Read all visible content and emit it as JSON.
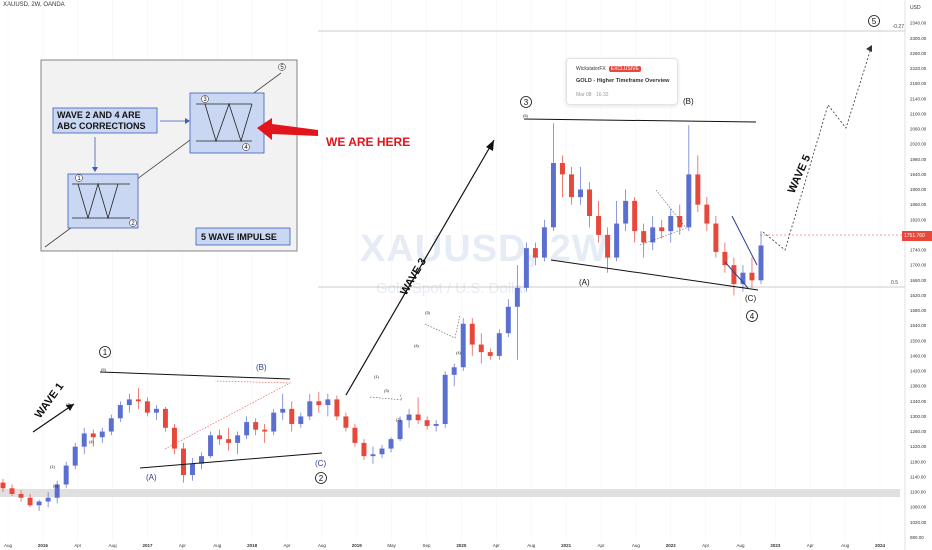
{
  "header": {
    "symbol": "XAUUSD, 2W, OANDA"
  },
  "watermark": {
    "ticker": "XAUUSD, 2W",
    "name": "Gold Spot / U.S. Dollar"
  },
  "tooltip": {
    "author": "WickstatorFX",
    "badge": "EXCLUSIVE",
    "title": "GOLD - Higher Timeframe Overview",
    "date": "Mar 08 · 16:32"
  },
  "colors": {
    "up": "#5b6fd1",
    "down": "#e8473c",
    "inset_bg": "#f2f2f2",
    "box_fill": "#c9d7f3",
    "box_stroke": "#3e5cb8",
    "arrow_red": "#e3141b",
    "wave_blue": "#2a3d99"
  },
  "inset": {
    "note": "WAVE 2 AND 4 ARE\nABC CORRECTIONS",
    "label": "5 WAVE IMPULSE",
    "callout": "WE ARE HERE",
    "markers": [
      "1",
      "2",
      "3",
      "4",
      "5"
    ]
  },
  "wave_labels": {
    "wave1": "WAVE 1",
    "wave3": "WAVE 3",
    "wave5": "WAVE 5",
    "c1": "1",
    "c2": "2",
    "c3": "3",
    "c4": "4",
    "c5": "5",
    "A1": "(A)",
    "B1": "(B)",
    "C1": "(C)",
    "A2": "(A)",
    "B2": "(B)",
    "C2": "(C)",
    "s1": "(1)",
    "s2": "(2)",
    "s3": "(3)",
    "s4": "(4)",
    "s5": "(5)",
    "t1": "(1)",
    "t2": "(2)",
    "t3": "(3)",
    "t4": "(4)",
    "t5": "(5)",
    "u3": "(3)",
    "u4": "(4)"
  },
  "fib_label": "0.5",
  "fib_top_label": "-0.27",
  "current_price": {
    "value": "1751.760",
    "sub": "114:22:01"
  },
  "chart_data": {
    "type": "candlestick",
    "y_axis_label": "USD",
    "ylim": [
      960,
      2380
    ],
    "y_ticks": [
      980,
      1020,
      1060,
      1100,
      1140,
      1180,
      1220,
      1260,
      1300,
      1340,
      1380,
      1420,
      1460,
      1500,
      1540,
      1580,
      1620,
      1660,
      1700,
      1740,
      1780,
      1820,
      1860,
      1900,
      1940,
      1980,
      2020,
      2060,
      2100,
      2140,
      2180,
      2220,
      2260,
      2300,
      2340
    ],
    "x_ticks": [
      "Aug",
      "2016",
      "Apr",
      "Aug",
      "2017",
      "Apr",
      "Aug",
      "2018",
      "Apr",
      "Aug",
      "2019",
      "May",
      "Sep",
      "2020",
      "Apr",
      "Aug",
      "2021",
      "Apr",
      "Aug",
      "2022",
      "Apr",
      "Aug",
      "2023",
      "Apr",
      "Aug",
      "2024"
    ],
    "bars": [
      [
        1125,
        1135,
        1100,
        1110
      ],
      [
        1110,
        1120,
        1090,
        1095
      ],
      [
        1095,
        1105,
        1075,
        1085
      ],
      [
        1085,
        1095,
        1060,
        1065
      ],
      [
        1065,
        1080,
        1050,
        1075
      ],
      [
        1075,
        1100,
        1060,
        1085
      ],
      [
        1085,
        1130,
        1070,
        1120
      ],
      [
        1120,
        1180,
        1110,
        1170
      ],
      [
        1170,
        1230,
        1160,
        1220
      ],
      [
        1220,
        1270,
        1200,
        1255
      ],
      [
        1255,
        1265,
        1220,
        1245
      ],
      [
        1245,
        1270,
        1230,
        1260
      ],
      [
        1260,
        1305,
        1250,
        1295
      ],
      [
        1295,
        1340,
        1285,
        1330
      ],
      [
        1330,
        1360,
        1310,
        1345
      ],
      [
        1345,
        1375,
        1320,
        1340
      ],
      [
        1340,
        1350,
        1300,
        1310
      ],
      [
        1310,
        1330,
        1290,
        1320
      ],
      [
        1320,
        1325,
        1260,
        1270
      ],
      [
        1270,
        1280,
        1200,
        1215
      ],
      [
        1215,
        1230,
        1125,
        1145
      ],
      [
        1145,
        1190,
        1130,
        1175
      ],
      [
        1175,
        1205,
        1160,
        1195
      ],
      [
        1195,
        1260,
        1190,
        1250
      ],
      [
        1250,
        1265,
        1225,
        1240
      ],
      [
        1240,
        1270,
        1210,
        1230
      ],
      [
        1230,
        1260,
        1200,
        1250
      ],
      [
        1250,
        1300,
        1240,
        1285
      ],
      [
        1285,
        1295,
        1250,
        1265
      ],
      [
        1265,
        1280,
        1230,
        1260
      ],
      [
        1260,
        1320,
        1250,
        1310
      ],
      [
        1310,
        1360,
        1290,
        1320
      ],
      [
        1320,
        1340,
        1260,
        1280
      ],
      [
        1280,
        1310,
        1270,
        1300
      ],
      [
        1300,
        1360,
        1290,
        1340
      ],
      [
        1340,
        1365,
        1310,
        1330
      ],
      [
        1330,
        1360,
        1300,
        1345
      ],
      [
        1345,
        1355,
        1290,
        1300
      ],
      [
        1300,
        1310,
        1260,
        1270
      ],
      [
        1270,
        1280,
        1220,
        1230
      ],
      [
        1230,
        1240,
        1185,
        1195
      ],
      [
        1195,
        1220,
        1175,
        1200
      ],
      [
        1200,
        1225,
        1190,
        1215
      ],
      [
        1215,
        1245,
        1205,
        1240
      ],
      [
        1240,
        1300,
        1235,
        1290
      ],
      [
        1290,
        1320,
        1270,
        1305
      ],
      [
        1305,
        1350,
        1280,
        1290
      ],
      [
        1290,
        1300,
        1265,
        1275
      ],
      [
        1275,
        1290,
        1260,
        1280
      ],
      [
        1280,
        1420,
        1270,
        1410
      ],
      [
        1410,
        1440,
        1380,
        1430
      ],
      [
        1430,
        1560,
        1420,
        1545
      ],
      [
        1545,
        1560,
        1460,
        1490
      ],
      [
        1490,
        1520,
        1440,
        1470
      ],
      [
        1470,
        1480,
        1450,
        1460
      ],
      [
        1460,
        1530,
        1450,
        1520
      ],
      [
        1520,
        1610,
        1510,
        1590
      ],
      [
        1590,
        1700,
        1450,
        1640
      ],
      [
        1640,
        1760,
        1630,
        1745
      ],
      [
        1745,
        1760,
        1700,
        1720
      ],
      [
        1720,
        1820,
        1710,
        1800
      ],
      [
        1800,
        2075,
        1790,
        1970
      ],
      [
        1970,
        1990,
        1880,
        1940
      ],
      [
        1940,
        1960,
        1860,
        1880
      ],
      [
        1880,
        1960,
        1860,
        1900
      ],
      [
        1900,
        1920,
        1800,
        1830
      ],
      [
        1830,
        1870,
        1760,
        1780
      ],
      [
        1780,
        1800,
        1680,
        1720
      ],
      [
        1720,
        1870,
        1710,
        1810
      ],
      [
        1810,
        1900,
        1790,
        1870
      ],
      [
        1870,
        1880,
        1760,
        1790
      ],
      [
        1790,
        1810,
        1720,
        1760
      ],
      [
        1760,
        1830,
        1740,
        1800
      ],
      [
        1800,
        1820,
        1770,
        1790
      ],
      [
        1790,
        1850,
        1760,
        1830
      ],
      [
        1830,
        1860,
        1780,
        1800
      ],
      [
        1800,
        2070,
        1790,
        1940
      ],
      [
        1940,
        1990,
        1840,
        1860
      ],
      [
        1860,
        1880,
        1790,
        1810
      ],
      [
        1810,
        1830,
        1720,
        1735
      ],
      [
        1735,
        1760,
        1680,
        1700
      ],
      [
        1700,
        1720,
        1620,
        1650
      ],
      [
        1650,
        1700,
        1630,
        1680
      ],
      [
        1680,
        1720,
        1640,
        1660
      ],
      [
        1660,
        1790,
        1650,
        1752
      ]
    ]
  }
}
